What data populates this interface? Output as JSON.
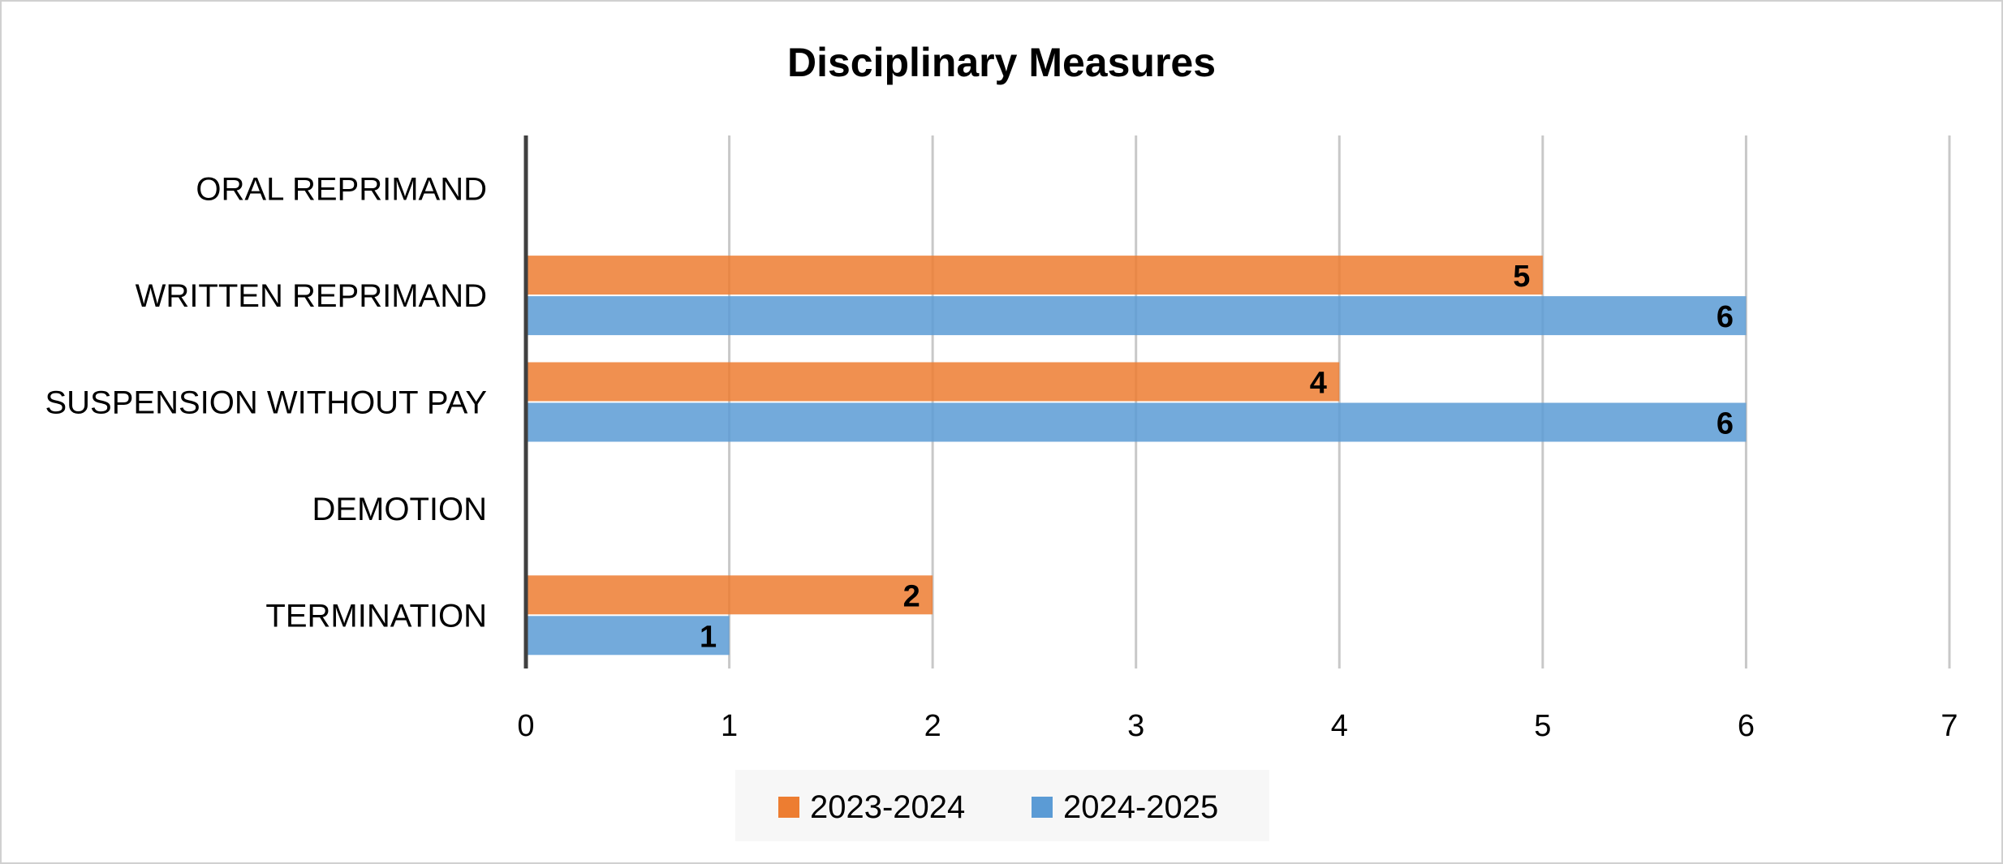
{
  "chart_data": {
    "type": "bar",
    "orientation": "horizontal",
    "title": "Disciplinary Measures",
    "categories": [
      "ORAL REPRIMAND",
      "WRITTEN REPRIMAND",
      "SUSPENSION WITHOUT PAY",
      "DEMOTION",
      "TERMINATION"
    ],
    "series": [
      {
        "name": "2023-2024",
        "color": "#ED7D31",
        "values": [
          null,
          5,
          4,
          null,
          2
        ]
      },
      {
        "name": "2024-2025",
        "color": "#5B9BD5",
        "values": [
          null,
          6,
          6,
          null,
          1
        ]
      }
    ],
    "xlim": [
      0,
      7
    ],
    "xticks": [
      "0",
      "1",
      "2",
      "3",
      "4",
      "5",
      "6",
      "7"
    ],
    "grid": true,
    "data_labels": true,
    "legend": "bottom"
  }
}
